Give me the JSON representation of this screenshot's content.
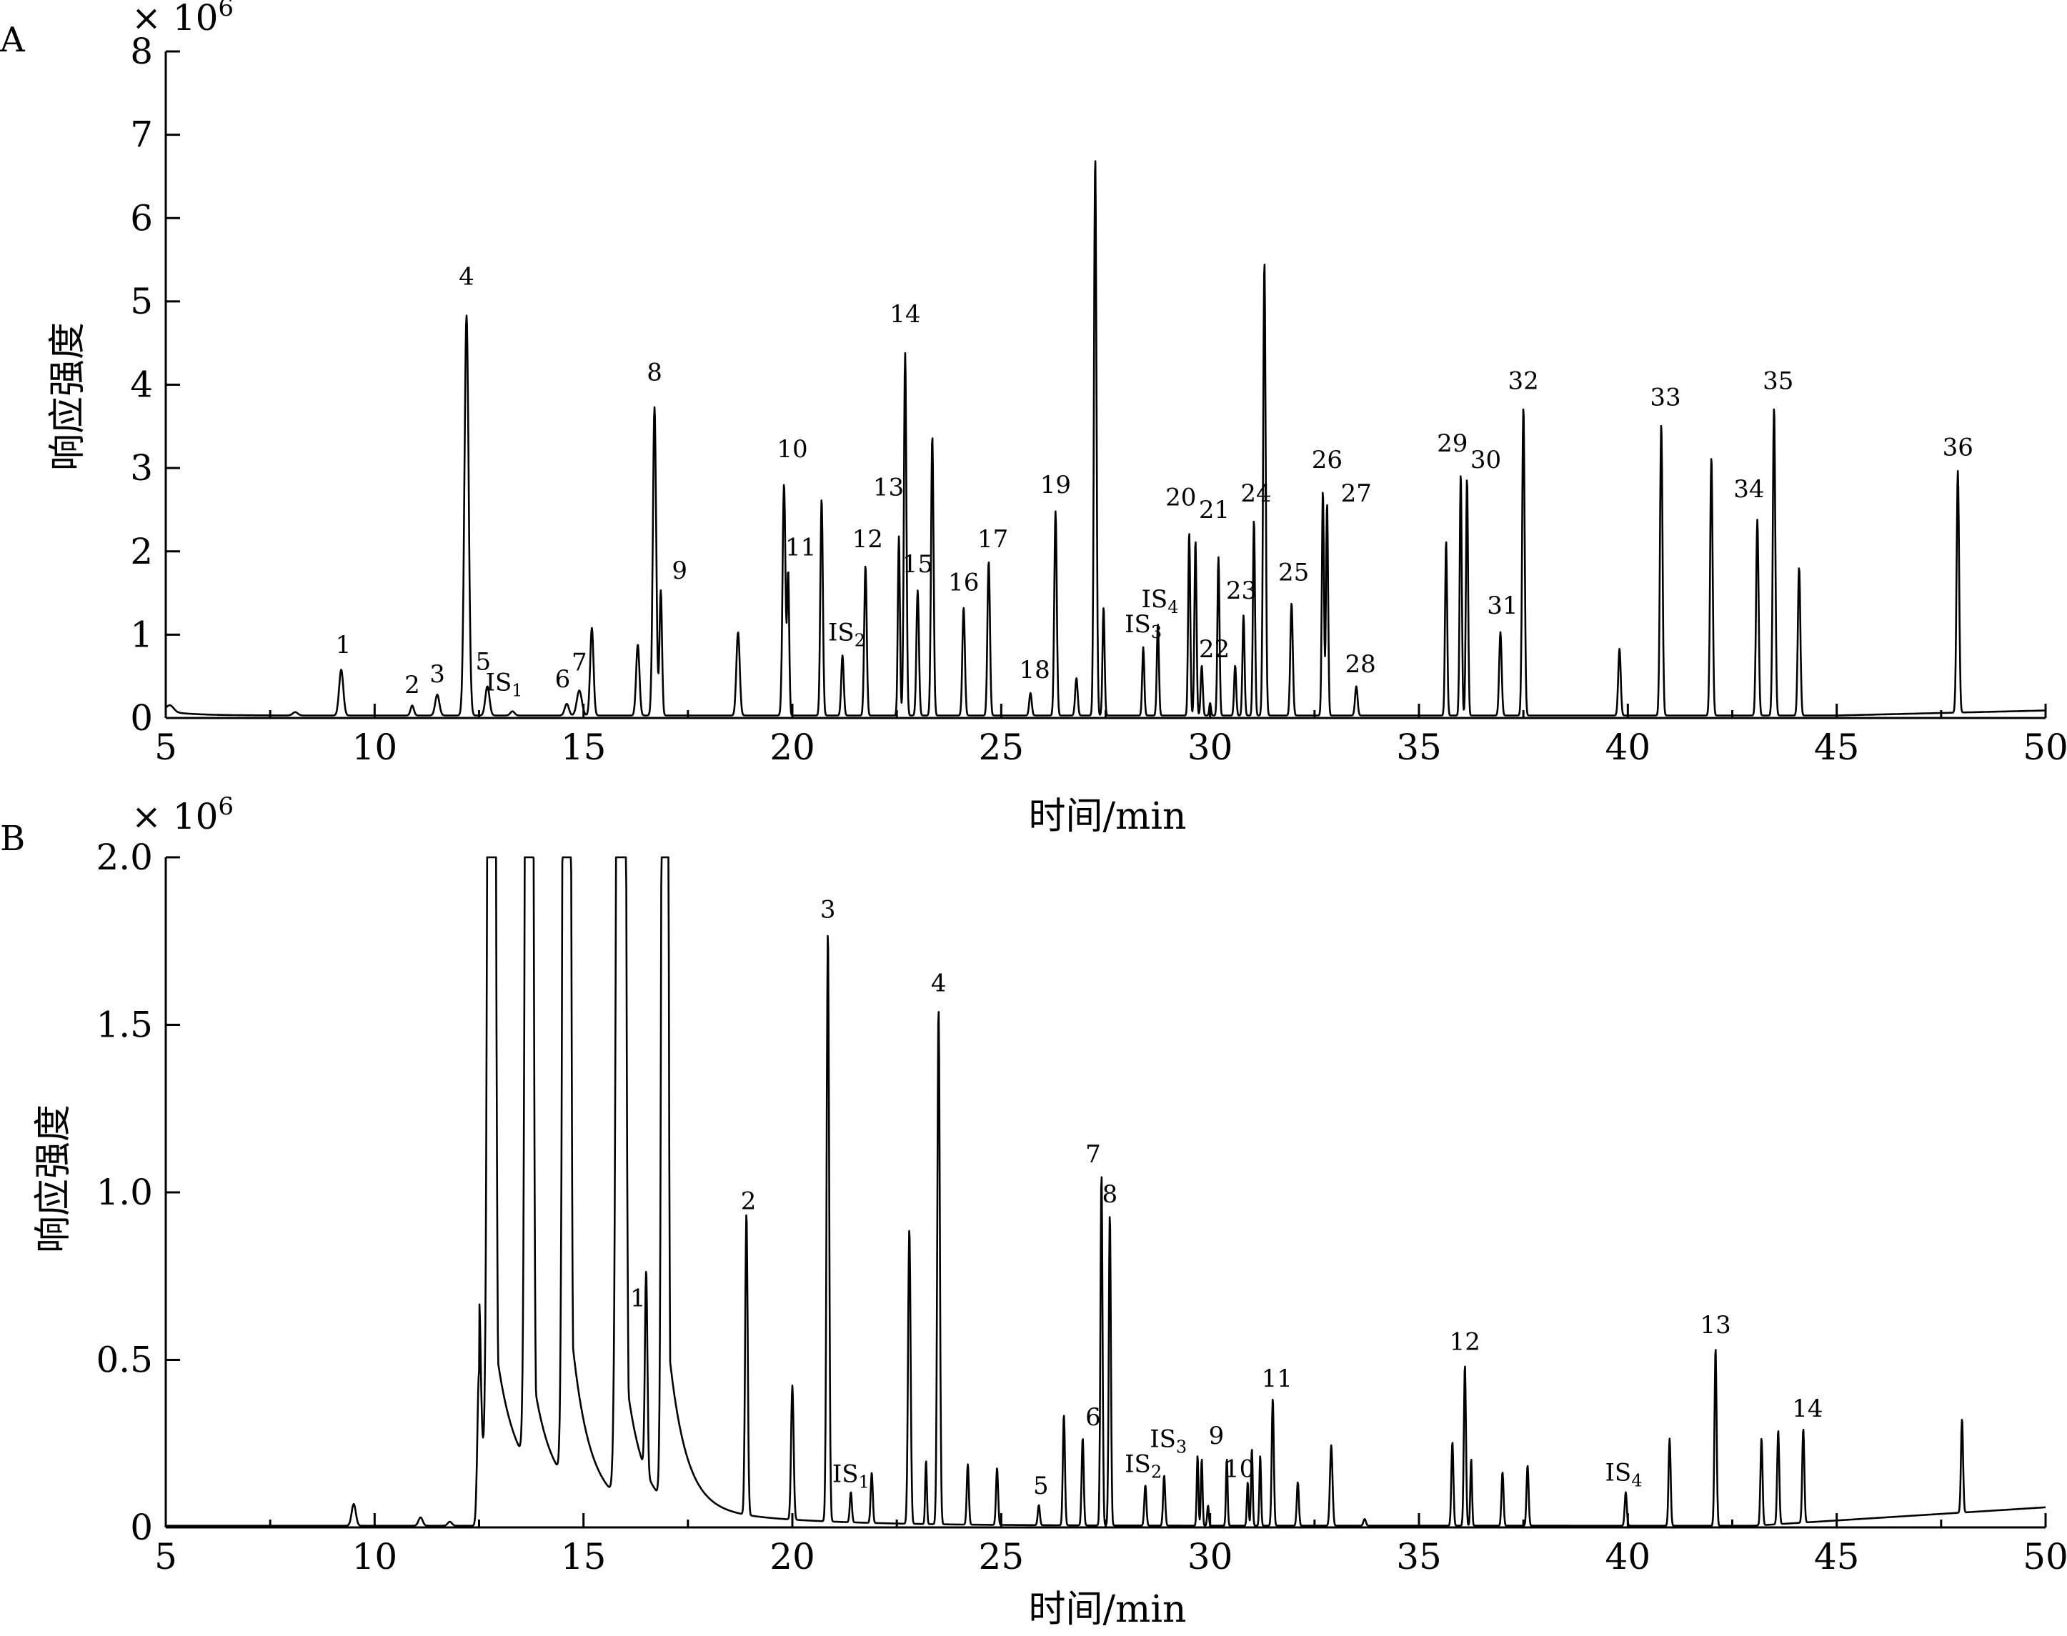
{
  "chart_data": [
    {
      "type": "line",
      "panel": "A",
      "title": "",
      "xlabel": "时间/min",
      "ylabel": "响应强度",
      "y_multiplier": "× 10",
      "y_multiplier_exp": "6",
      "xlim": [
        5,
        50
      ],
      "ylim": [
        0,
        8
      ],
      "x_ticks": [
        5,
        10,
        15,
        20,
        25,
        30,
        35,
        40,
        45,
        50
      ],
      "y_ticks": [
        0,
        1,
        2,
        3,
        4,
        5,
        6,
        7,
        8
      ],
      "baseline": 0.03,
      "peaks": [
        {
          "x": 5.1,
          "y": 0.08,
          "w": 0.09
        },
        {
          "x": 8.1,
          "y": 0.04,
          "w": 0.06
        },
        {
          "x": 9.2,
          "y": 0.55,
          "w": 0.05,
          "label": "1",
          "lx": 9.25,
          "ly": 0.78
        },
        {
          "x": 10.9,
          "y": 0.12,
          "w": 0.04,
          "label": "2",
          "lx": 10.9,
          "ly": 0.3
        },
        {
          "x": 11.5,
          "y": 0.25,
          "w": 0.05,
          "label": "3",
          "lx": 11.5,
          "ly": 0.43
        },
        {
          "x": 12.2,
          "y": 4.8,
          "w": 0.05,
          "label": "4",
          "lx": 12.2,
          "ly": 5.2
        },
        {
          "x": 12.7,
          "y": 0.35,
          "w": 0.05,
          "label": "5",
          "lx": 12.6,
          "ly": 0.58
        },
        {
          "x": 13.3,
          "y": 0.05,
          "w": 0.05,
          "label": "IS",
          "sub": "1",
          "lx": 13.1,
          "ly": 0.33
        },
        {
          "x": 14.6,
          "y": 0.14,
          "w": 0.05,
          "label": "6",
          "lx": 14.5,
          "ly": 0.37
        },
        {
          "x": 14.9,
          "y": 0.3,
          "w": 0.06,
          "label": "7",
          "lx": 14.9,
          "ly": 0.57
        },
        {
          "x": 15.2,
          "y": 1.05,
          "w": 0.04
        },
        {
          "x": 16.3,
          "y": 0.85,
          "w": 0.04
        },
        {
          "x": 16.7,
          "y": 3.7,
          "w": 0.04,
          "label": "8",
          "lx": 16.7,
          "ly": 4.05
        },
        {
          "x": 16.85,
          "y": 1.5,
          "w": 0.03,
          "label": "9",
          "lx": 17.3,
          "ly": 1.67
        },
        {
          "x": 18.7,
          "y": 1.0,
          "w": 0.04
        },
        {
          "x": 19.8,
          "y": 2.78,
          "w": 0.035,
          "label": "10",
          "lx": 20.0,
          "ly": 3.13
        },
        {
          "x": 19.9,
          "y": 1.7,
          "w": 0.025,
          "label": "11",
          "lx": 20.2,
          "ly": 1.95
        },
        {
          "x": 20.7,
          "y": 2.6,
          "w": 0.03
        },
        {
          "x": 21.2,
          "y": 0.72,
          "w": 0.03,
          "label": "IS",
          "sub": "2",
          "lx": 21.3,
          "ly": 0.93
        },
        {
          "x": 21.75,
          "y": 1.8,
          "w": 0.03,
          "label": "12",
          "lx": 21.8,
          "ly": 2.05
        },
        {
          "x": 22.55,
          "y": 2.15,
          "w": 0.025,
          "label": "13",
          "lx": 22.3,
          "ly": 2.67
        },
        {
          "x": 22.7,
          "y": 4.35,
          "w": 0.03,
          "label": "14",
          "lx": 22.7,
          "ly": 4.75
        },
        {
          "x": 23.0,
          "y": 1.5,
          "w": 0.03,
          "label": "15",
          "lx": 23.0,
          "ly": 1.75
        },
        {
          "x": 23.35,
          "y": 3.35,
          "w": 0.03
        },
        {
          "x": 24.1,
          "y": 1.3,
          "w": 0.03,
          "label": "16",
          "lx": 24.1,
          "ly": 1.53
        },
        {
          "x": 24.7,
          "y": 1.85,
          "w": 0.03,
          "label": "17",
          "lx": 24.8,
          "ly": 2.05
        },
        {
          "x": 25.7,
          "y": 0.27,
          "w": 0.03,
          "label": "18",
          "lx": 25.8,
          "ly": 0.48
        },
        {
          "x": 26.3,
          "y": 2.45,
          "w": 0.03,
          "label": "19",
          "lx": 26.3,
          "ly": 2.7
        },
        {
          "x": 26.8,
          "y": 0.45,
          "w": 0.03
        },
        {
          "x": 27.25,
          "y": 6.7,
          "w": 0.03
        },
        {
          "x": 27.45,
          "y": 1.3,
          "w": 0.025
        },
        {
          "x": 28.4,
          "y": 0.82,
          "w": 0.025,
          "label": "IS",
          "sub": "3",
          "lx": 28.4,
          "ly": 1.03
        },
        {
          "x": 28.75,
          "y": 1.1,
          "w": 0.025,
          "label": "IS",
          "sub": "4",
          "lx": 28.8,
          "ly": 1.33
        },
        {
          "x": 29.5,
          "y": 2.2,
          "w": 0.025,
          "label": "20",
          "lx": 29.3,
          "ly": 2.55
        },
        {
          "x": 29.65,
          "y": 2.1,
          "w": 0.025,
          "label": "21",
          "lx": 30.1,
          "ly": 2.4
        },
        {
          "x": 29.8,
          "y": 0.6,
          "w": 0.025,
          "label": "22",
          "lx": 30.1,
          "ly": 0.73
        },
        {
          "x": 30.0,
          "y": 0.15,
          "w": 0.02
        },
        {
          "x": 30.2,
          "y": 1.9,
          "w": 0.025
        },
        {
          "x": 30.6,
          "y": 0.6,
          "w": 0.025
        },
        {
          "x": 30.8,
          "y": 1.2,
          "w": 0.025,
          "label": "23",
          "lx": 30.75,
          "ly": 1.43
        },
        {
          "x": 31.05,
          "y": 2.35,
          "w": 0.025,
          "label": "24",
          "lx": 31.1,
          "ly": 2.6
        },
        {
          "x": 31.3,
          "y": 5.45,
          "w": 0.03
        },
        {
          "x": 31.95,
          "y": 1.35,
          "w": 0.03,
          "label": "25",
          "lx": 32.0,
          "ly": 1.65
        },
        {
          "x": 32.7,
          "y": 2.7,
          "w": 0.025,
          "label": "26",
          "lx": 32.8,
          "ly": 3.0
        },
        {
          "x": 32.8,
          "y": 2.55,
          "w": 0.025,
          "label": "27",
          "lx": 33.5,
          "ly": 2.6
        },
        {
          "x": 33.5,
          "y": 0.35,
          "w": 0.03,
          "label": "28",
          "lx": 33.6,
          "ly": 0.55
        },
        {
          "x": 35.65,
          "y": 2.1,
          "w": 0.025
        },
        {
          "x": 36.0,
          "y": 2.9,
          "w": 0.025,
          "label": "29",
          "lx": 35.8,
          "ly": 3.2
        },
        {
          "x": 36.15,
          "y": 2.85,
          "w": 0.025,
          "label": "30",
          "lx": 36.6,
          "ly": 3.0
        },
        {
          "x": 36.95,
          "y": 1.0,
          "w": 0.03,
          "label": "31",
          "lx": 37.0,
          "ly": 1.25
        },
        {
          "x": 37.5,
          "y": 3.7,
          "w": 0.03,
          "label": "32",
          "lx": 37.5,
          "ly": 3.95
        },
        {
          "x": 39.8,
          "y": 0.8,
          "w": 0.03
        },
        {
          "x": 40.8,
          "y": 3.5,
          "w": 0.03,
          "label": "33",
          "lx": 40.9,
          "ly": 3.75
        },
        {
          "x": 42.0,
          "y": 3.1,
          "w": 0.03
        },
        {
          "x": 43.1,
          "y": 2.35,
          "w": 0.03,
          "label": "34",
          "lx": 42.9,
          "ly": 2.65
        },
        {
          "x": 43.5,
          "y": 3.7,
          "w": 0.03,
          "label": "35",
          "lx": 43.6,
          "ly": 3.95
        },
        {
          "x": 44.1,
          "y": 1.78,
          "w": 0.03
        },
        {
          "x": 47.9,
          "y": 2.9,
          "w": 0.03,
          "label": "36",
          "lx": 47.9,
          "ly": 3.15
        }
      ]
    },
    {
      "type": "line",
      "panel": "B",
      "title": "",
      "xlabel": "时间/min",
      "ylabel": "响应强度",
      "y_multiplier": "× 10",
      "y_multiplier_exp": "6",
      "xlim": [
        5,
        50
      ],
      "ylim": [
        0,
        2.0
      ],
      "x_ticks": [
        5,
        10,
        15,
        20,
        25,
        30,
        35,
        40,
        45,
        50
      ],
      "y_ticks": [
        0,
        0.5,
        1.0,
        1.5,
        2.0
      ],
      "y_tick_labels": [
        "0",
        "0.5",
        "1.0",
        "1.5",
        "2.0"
      ],
      "baseline": 0.003,
      "peaks": [
        {
          "x": 9.5,
          "y": 0.065,
          "w": 0.05
        },
        {
          "x": 11.1,
          "y": 0.025,
          "w": 0.05
        },
        {
          "x": 11.8,
          "y": 0.012,
          "w": 0.05
        },
        {
          "x": 12.5,
          "y": 0.46,
          "w": 0.04
        },
        {
          "x": 12.8,
          "y": 9.0,
          "w": 0.06,
          "tail": 0.45
        },
        {
          "x": 13.7,
          "y": 9.0,
          "w": 0.06,
          "tail": 0.35
        },
        {
          "x": 14.6,
          "y": 9.0,
          "w": 0.06,
          "tail": 0.6
        },
        {
          "x": 15.9,
          "y": 9.0,
          "w": 0.07,
          "tail": 0.5
        },
        {
          "x": 16.5,
          "y": 0.6,
          "w": 0.03,
          "label": "1",
          "lx": 16.3,
          "ly": 0.66
        },
        {
          "x": 16.95,
          "y": 9.0,
          "w": 0.05,
          "tail": 0.55
        },
        {
          "x": 18.9,
          "y": 0.9,
          "w": 0.03,
          "label": "2",
          "lx": 18.95,
          "ly": 0.95
        },
        {
          "x": 20.0,
          "y": 0.4,
          "w": 0.03
        },
        {
          "x": 20.85,
          "y": 1.76,
          "w": 0.03,
          "label": "3",
          "lx": 20.85,
          "ly": 1.82
        },
        {
          "x": 21.4,
          "y": 0.09,
          "w": 0.025,
          "label": "IS",
          "sub": "1",
          "lx": 21.4,
          "ly": 0.135
        },
        {
          "x": 21.9,
          "y": 0.15,
          "w": 0.025
        },
        {
          "x": 22.8,
          "y": 0.88,
          "w": 0.03
        },
        {
          "x": 23.2,
          "y": 0.19,
          "w": 0.02
        },
        {
          "x": 23.5,
          "y": 1.54,
          "w": 0.03,
          "label": "4",
          "lx": 23.5,
          "ly": 1.6
        },
        {
          "x": 24.2,
          "y": 0.18,
          "w": 0.025
        },
        {
          "x": 24.9,
          "y": 0.17,
          "w": 0.025
        },
        {
          "x": 25.9,
          "y": 0.06,
          "w": 0.025,
          "label": "5",
          "lx": 25.95,
          "ly": 0.1
        },
        {
          "x": 26.5,
          "y": 0.33,
          "w": 0.025
        },
        {
          "x": 26.95,
          "y": 0.26,
          "w": 0.025,
          "label": "6",
          "lx": 27.2,
          "ly": 0.305
        },
        {
          "x": 27.4,
          "y": 1.05,
          "w": 0.025,
          "label": "7",
          "lx": 27.2,
          "ly": 1.09
        },
        {
          "x": 27.6,
          "y": 0.93,
          "w": 0.025,
          "label": "8",
          "lx": 27.6,
          "ly": 0.97
        },
        {
          "x": 28.45,
          "y": 0.12,
          "w": 0.025,
          "label": "IS",
          "sub": "2",
          "lx": 28.4,
          "ly": 0.165
        },
        {
          "x": 28.9,
          "y": 0.15,
          "w": 0.025,
          "label": "IS",
          "sub": "3",
          "lx": 29.0,
          "ly": 0.24
        },
        {
          "x": 29.7,
          "y": 0.21,
          "w": 0.02,
          "label": "9",
          "lx": 30.15,
          "ly": 0.25
        },
        {
          "x": 29.8,
          "y": 0.2,
          "w": 0.02
        },
        {
          "x": 29.95,
          "y": 0.06,
          "w": 0.02
        },
        {
          "x": 30.4,
          "y": 0.2,
          "w": 0.02
        },
        {
          "x": 30.9,
          "y": 0.13,
          "w": 0.02,
          "label": "10",
          "lx": 30.7,
          "ly": 0.15
        },
        {
          "x": 31.0,
          "y": 0.23,
          "w": 0.02
        },
        {
          "x": 31.2,
          "y": 0.21,
          "w": 0.02
        },
        {
          "x": 31.5,
          "y": 0.38,
          "w": 0.025,
          "label": "11",
          "lx": 31.6,
          "ly": 0.42
        },
        {
          "x": 32.1,
          "y": 0.13,
          "w": 0.025
        },
        {
          "x": 32.9,
          "y": 0.24,
          "w": 0.03
        },
        {
          "x": 33.7,
          "y": 0.02,
          "w": 0.03
        },
        {
          "x": 35.8,
          "y": 0.25,
          "w": 0.025
        },
        {
          "x": 36.1,
          "y": 0.48,
          "w": 0.025,
          "label": "12",
          "lx": 36.1,
          "ly": 0.53
        },
        {
          "x": 36.25,
          "y": 0.2,
          "w": 0.02
        },
        {
          "x": 37.0,
          "y": 0.16,
          "w": 0.025
        },
        {
          "x": 37.6,
          "y": 0.18,
          "w": 0.025
        },
        {
          "x": 39.95,
          "y": 0.1,
          "w": 0.025,
          "label": "IS",
          "sub": "4",
          "lx": 39.9,
          "ly": 0.14
        },
        {
          "x": 41.0,
          "y": 0.26,
          "w": 0.025
        },
        {
          "x": 42.1,
          "y": 0.53,
          "w": 0.025,
          "label": "13",
          "lx": 42.1,
          "ly": 0.58
        },
        {
          "x": 43.2,
          "y": 0.26,
          "w": 0.025
        },
        {
          "x": 43.6,
          "y": 0.28,
          "w": 0.025
        },
        {
          "x": 44.2,
          "y": 0.28,
          "w": 0.025,
          "label": "14",
          "lx": 44.3,
          "ly": 0.33
        },
        {
          "x": 48.0,
          "y": 0.28,
          "w": 0.025
        }
      ]
    }
  ],
  "panels": {
    "a": {
      "label": "A"
    },
    "b": {
      "label": "B"
    }
  }
}
